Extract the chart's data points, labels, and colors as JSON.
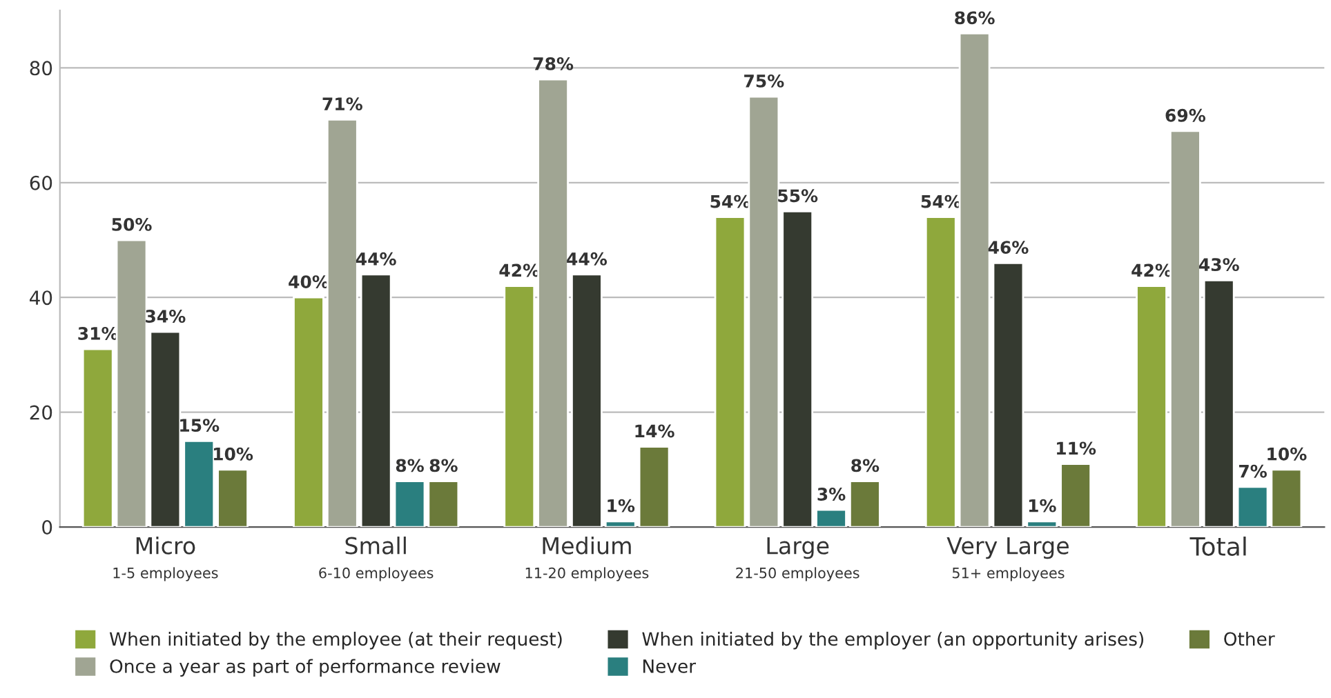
{
  "chart_data": {
    "type": "bar",
    "categories": [
      "Micro\n1-5 employees",
      "Small\n6-10 employees",
      "Medium\n11-20 employees",
      "Large\n21-50 employees",
      "Very Large\n51+ employees",
      "Total"
    ],
    "series": [
      {
        "name": "When initiated by the employee (at their request)",
        "color": "#8fa83c",
        "values": [
          31,
          40,
          42,
          54,
          54,
          42
        ],
        "value_labels": [
          "31%",
          "40%",
          "42%",
          "54%",
          "54%",
          "42%"
        ]
      },
      {
        "name": "Once a year as part of performance review",
        "color": "#a0a593",
        "values": [
          50,
          71,
          78,
          75,
          86,
          69
        ],
        "value_labels": [
          "50%",
          "71%",
          "78%",
          "75%",
          "86%",
          "69%"
        ]
      },
      {
        "name": "When initiated by the employer (an opportunity arises)",
        "color": "#353a30",
        "values": [
          34,
          44,
          44,
          55,
          46,
          43
        ],
        "value_labels": [
          "34%",
          "44%",
          "44%",
          "55%",
          "46%",
          "43%"
        ]
      },
      {
        "name": "Never",
        "color": "#2a7f7f",
        "values": [
          15,
          8,
          1,
          3,
          1,
          7
        ],
        "value_labels": [
          "15%",
          "8%",
          "1%",
          "3%",
          "1%",
          "7%"
        ]
      },
      {
        "name": "Other",
        "color": "#6b7a3a",
        "values": [
          10,
          8,
          14,
          8,
          11,
          10
        ],
        "value_labels": [
          "10%",
          "8%",
          "14%",
          "8%",
          "11%",
          "10%"
        ]
      }
    ],
    "ylim": [
      0,
      90
    ],
    "yticks": [
      0,
      20,
      40,
      60,
      80
    ],
    "grid": "y",
    "legend": "bottom"
  }
}
